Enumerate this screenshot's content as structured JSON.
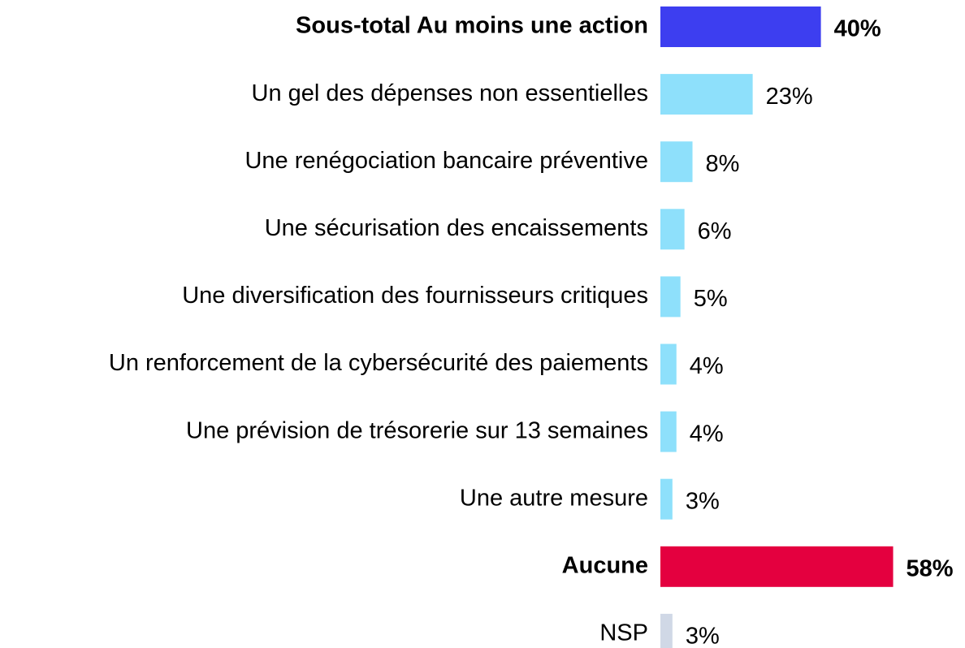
{
  "chart_data": {
    "type": "barh",
    "categories": [
      "Sous-total Au moins une action",
      "Un gel des dépenses non essentielles",
      "Une renégociation bancaire préventive",
      "Une sécurisation des encaissements",
      "Une diversification des fournisseurs critiques",
      "Un renforcement de la cybersécurité des paiements",
      "Une prévision de trésorerie sur 13 semaines",
      "Une autre mesure",
      "Aucune",
      "NSP"
    ],
    "values": [
      40,
      23,
      8,
      6,
      5,
      4,
      4,
      3,
      58,
      3
    ],
    "value_labels": [
      "40%",
      "23%",
      "8%",
      "6%",
      "5%",
      "4%",
      "4%",
      "3%",
      "58%",
      "3%"
    ],
    "colors": [
      "#3d3ef0",
      "#8ee0fb",
      "#8ee0fb",
      "#8ee0fb",
      "#8ee0fb",
      "#8ee0fb",
      "#8ee0fb",
      "#8ee0fb",
      "#e4003f",
      "#d0d8e6"
    ],
    "bold": [
      true,
      false,
      false,
      false,
      false,
      false,
      false,
      false,
      true,
      false
    ]
  }
}
